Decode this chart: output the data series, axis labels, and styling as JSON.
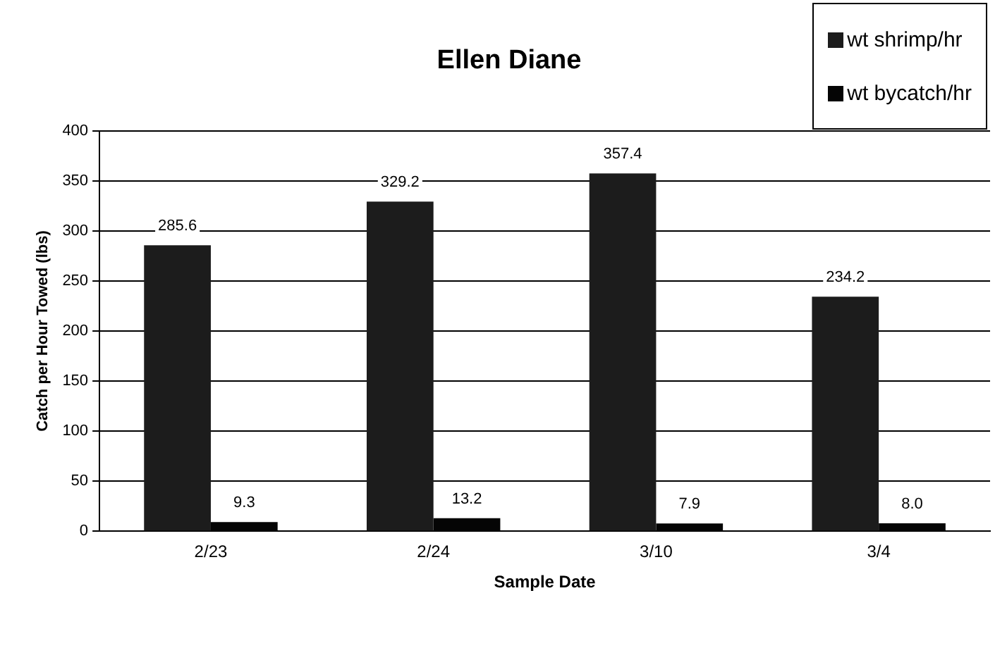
{
  "chart_data": {
    "type": "bar",
    "title": "Ellen Diane",
    "xlabel": "Sample Date",
    "ylabel": "Catch per Hour Towed (lbs)",
    "categories": [
      "2/23",
      "2/24",
      "3/10",
      "3/4"
    ],
    "series": [
      {
        "name": "wt shrimp/hr",
        "color": "#1c1c1c",
        "values": [
          285.6,
          329.2,
          357.4,
          234.2
        ],
        "value_labels": [
          "285.6",
          "329.2",
          "357.4",
          "234.2"
        ]
      },
      {
        "name": "wt bycatch/hr",
        "color": "#050505",
        "values": [
          9.3,
          13.2,
          7.9,
          8.0
        ],
        "value_labels": [
          "9.3",
          "13.2",
          "7.9",
          "8.0"
        ]
      }
    ],
    "ylim": [
      0,
      400
    ],
    "yticks": [
      0,
      50,
      100,
      150,
      200,
      250,
      300,
      350,
      400
    ],
    "grid": "y",
    "legend": "top right"
  }
}
